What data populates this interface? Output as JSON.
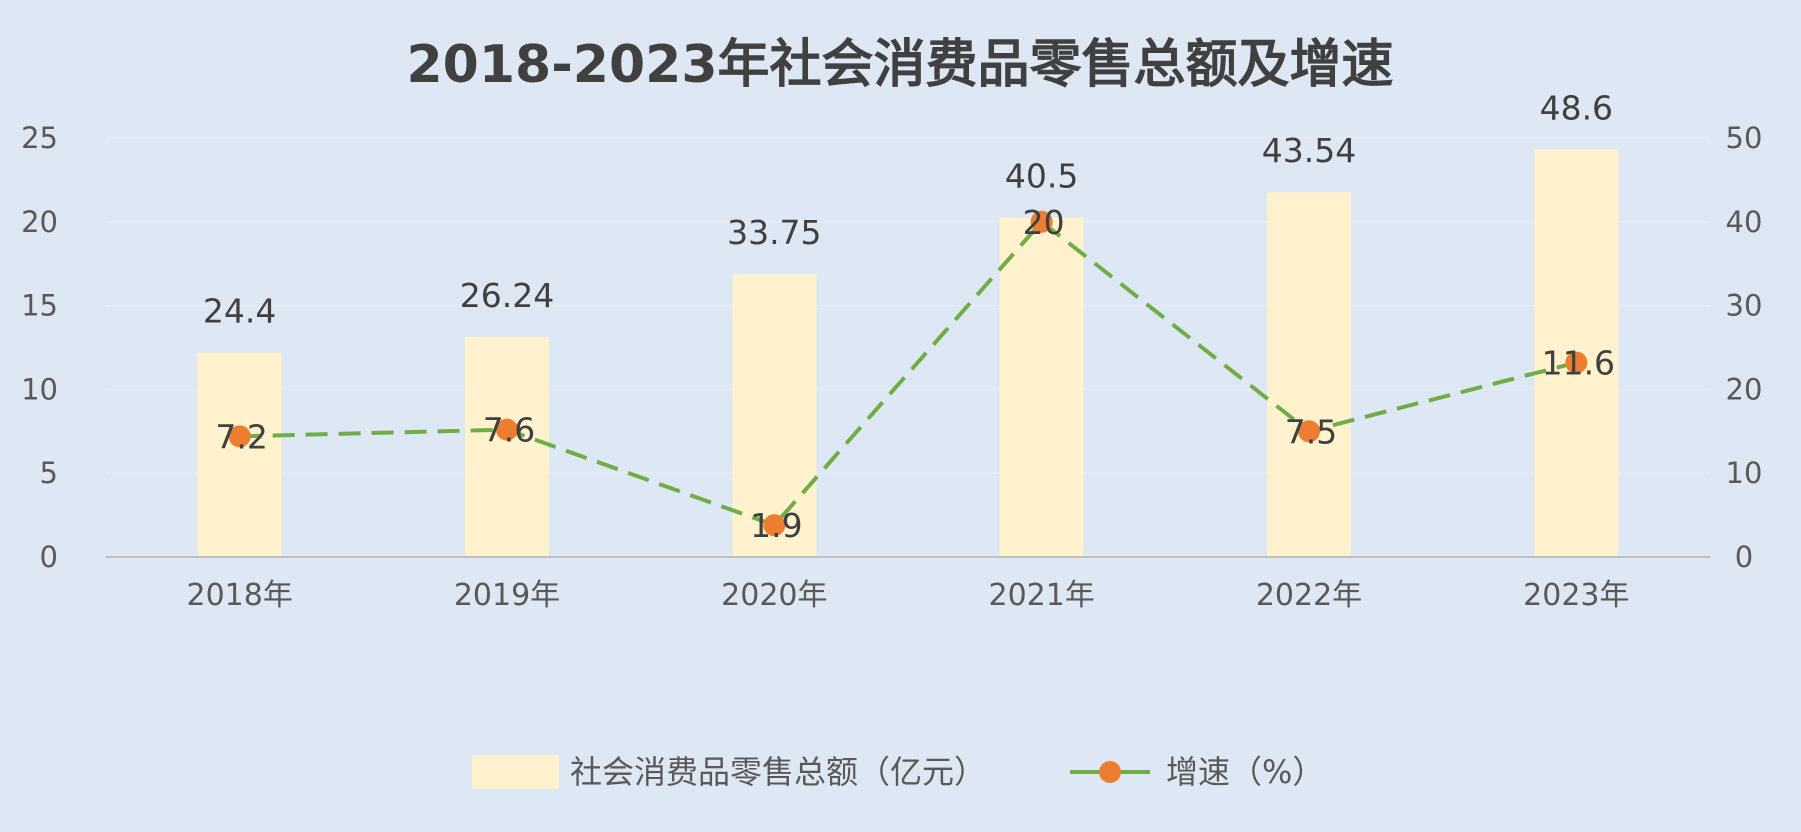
{
  "chart_data": {
    "type": "bar+line",
    "title": "2018-2023年社会消费品零售总额及增速",
    "categories": [
      "2018年",
      "2019年",
      "2020年",
      "2021年",
      "2022年",
      "2023年"
    ],
    "series": [
      {
        "name": "社会消费品零售总额（亿元）",
        "type": "bar",
        "axis": "right",
        "values": [
          24.4,
          26.24,
          33.75,
          40.5,
          43.54,
          48.6
        ],
        "labels": [
          "24.4",
          "26.24",
          "33.75",
          "40.5",
          "43.54",
          "48.6"
        ],
        "color": "#fff2cc"
      },
      {
        "name": "增速（%）",
        "type": "line",
        "axis": "left",
        "values": [
          7.2,
          7.6,
          1.9,
          20,
          7.5,
          11.6
        ],
        "labels": [
          "7.2",
          "7.6",
          "1.9",
          "20",
          "7.5",
          "11.6"
        ],
        "line_color": "#70ad47",
        "marker_color": "#ed7d31",
        "line_style": "dashed"
      }
    ],
    "y_left": {
      "range": [
        0,
        25
      ],
      "ticks": [
        "0",
        "5",
        "10",
        "15",
        "20",
        "25"
      ]
    },
    "y_right": {
      "range": [
        0,
        50
      ],
      "ticks": [
        "0",
        "10",
        "20",
        "30",
        "40",
        "50"
      ]
    },
    "grid": true,
    "legend_position": "bottom"
  }
}
